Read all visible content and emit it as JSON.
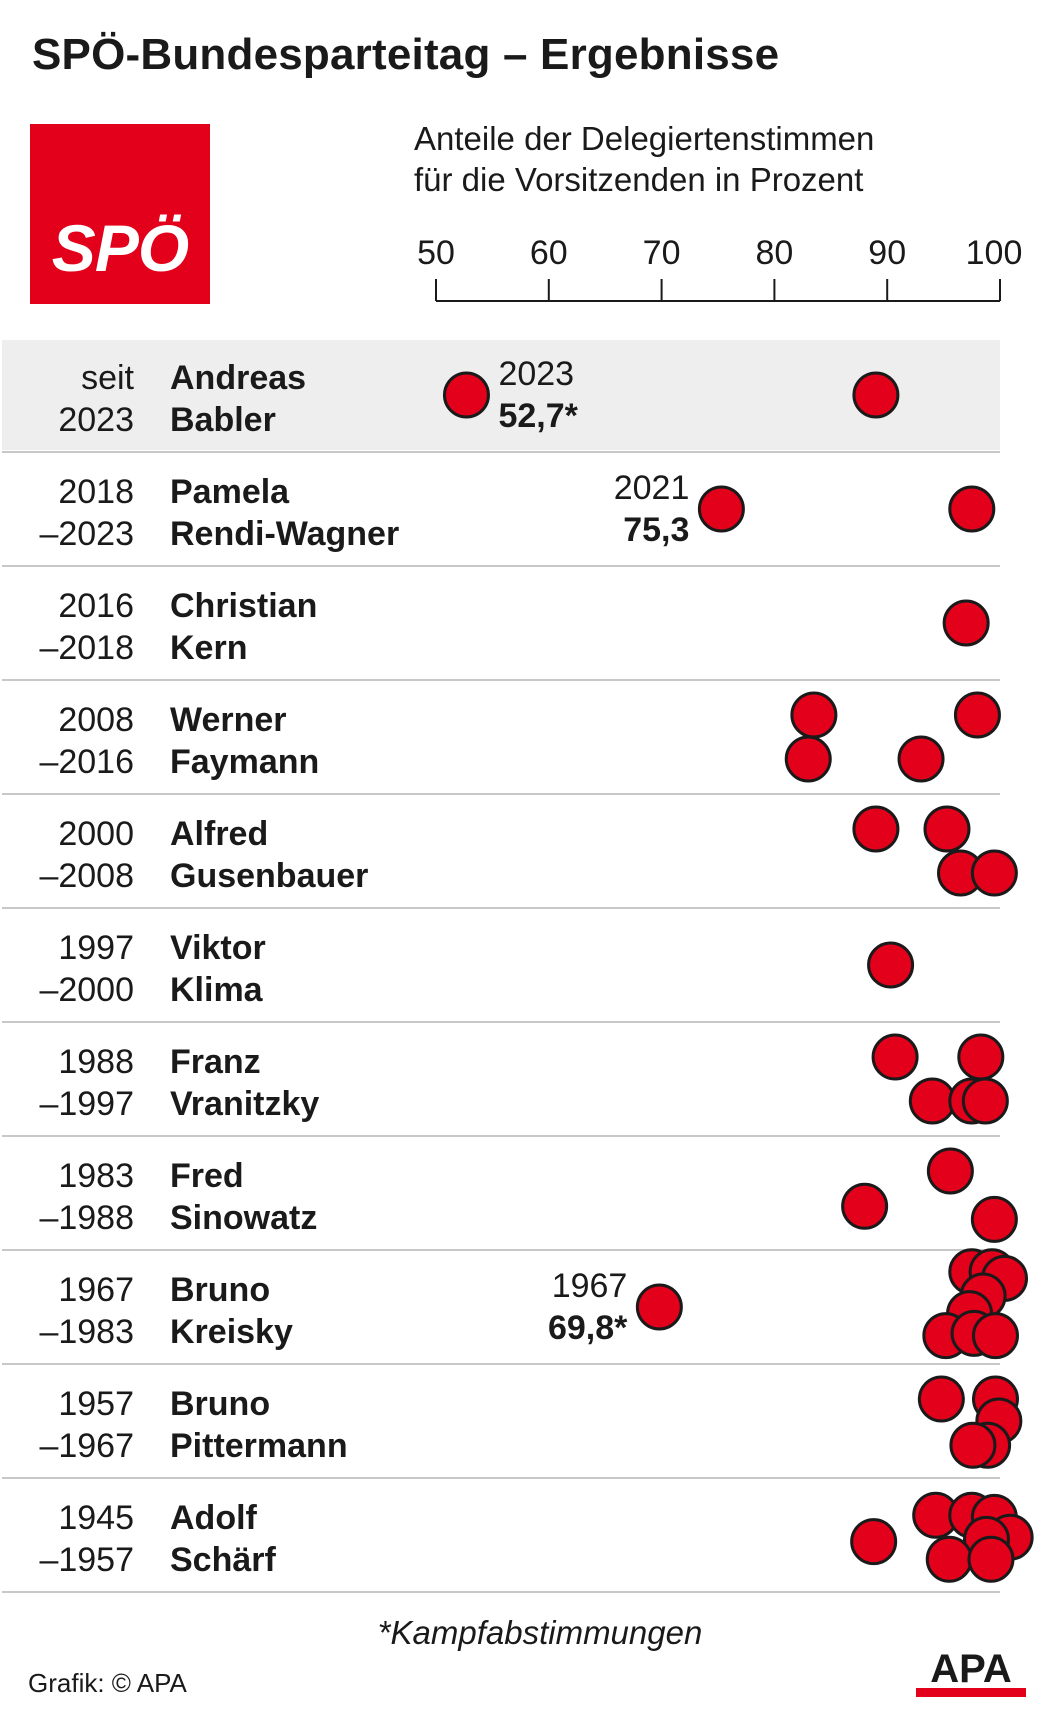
{
  "title": "SPÖ-Bundesparteitag – Ergebnisse",
  "logo_text": "SPÖ",
  "subtitle_line1": "Anteile der Delegiertenstimmen",
  "subtitle_line2": "für die Vorsitzenden in Prozent",
  "footnote": "*Kampfabstimmungen",
  "credit": "Grafik: © APA",
  "apa_logo_text": "APA",
  "colors": {
    "dot": "#e2001a",
    "dot_stroke": "#1a1a1a",
    "highlight_row": "#eeeeee",
    "divider": "#c8c8c8",
    "logo_bg": "#e2001a"
  },
  "chart_data": {
    "type": "scatter",
    "xlim": [
      50,
      100
    ],
    "ticks": [
      "50",
      "60",
      "70",
      "80",
      "90",
      "100"
    ],
    "rows": [
      {
        "years_top": "seit",
        "years_bottom": "2023",
        "first": "Andreas",
        "last": "Babler",
        "highlight": true,
        "points": [
          [
            52.7,
            0
          ],
          [
            89,
            0
          ]
        ],
        "annotation": {
          "year": "2023",
          "value": "52,7*"
        }
      },
      {
        "years_top": "2018",
        "years_bottom": "–2023",
        "first": "Pamela",
        "last": "Rendi-Wagner",
        "points": [
          [
            75.3,
            0
          ],
          [
            97.5,
            0
          ]
        ],
        "annotation": {
          "year": "2021",
          "value": "75,3"
        }
      },
      {
        "years_top": "2016",
        "years_bottom": "–2018",
        "first": "Christian",
        "last": "Kern",
        "points": [
          [
            97,
            0
          ]
        ]
      },
      {
        "years_top": "2008",
        "years_bottom": "–2016",
        "first": "Werner",
        "last": "Faymann",
        "points": [
          [
            83.5,
            -1
          ],
          [
            98,
            -1
          ],
          [
            83,
            1
          ],
          [
            93,
            1
          ]
        ]
      },
      {
        "years_top": "2000",
        "years_bottom": "–2008",
        "first": "Alfred",
        "last": "Gusenbauer",
        "points": [
          [
            89,
            -1
          ],
          [
            95.3,
            -1
          ],
          [
            96.5,
            1
          ],
          [
            99.5,
            1
          ]
        ]
      },
      {
        "years_top": "1997",
        "years_bottom": "–2000",
        "first": "Viktor",
        "last": "Klima",
        "points": [
          [
            90.3,
            0
          ]
        ]
      },
      {
        "years_top": "1988",
        "years_bottom": "–1997",
        "first": "Franz",
        "last": "Vranitzky",
        "points": [
          [
            90.7,
            -1
          ],
          [
            98.3,
            -1
          ],
          [
            94,
            1
          ],
          [
            97.5,
            1
          ],
          [
            98.7,
            1
          ]
        ]
      },
      {
        "years_top": "1983",
        "years_bottom": "–1988",
        "first": "Fred",
        "last": "Sinowatz",
        "points": [
          [
            95.6,
            -1
          ],
          [
            88,
            0.6
          ],
          [
            99.5,
            1.2
          ]
        ]
      },
      {
        "years_top": "1967",
        "years_bottom": "–1983",
        "first": "Bruno",
        "last": "Kreisky",
        "points": [
          [
            69.8,
            0
          ],
          [
            97.5,
            -1.6
          ],
          [
            99.3,
            -1.6
          ],
          [
            100.4,
            -1.3
          ],
          [
            98.5,
            -0.5
          ],
          [
            97.3,
            0.3
          ],
          [
            95.2,
            1.3
          ],
          [
            97.7,
            1.2
          ],
          [
            99.6,
            1.3
          ]
        ],
        "annotation": {
          "year": "1967",
          "value": "69,8*"
        }
      },
      {
        "years_top": "1957",
        "years_bottom": "–1967",
        "first": "Bruno",
        "last": "Pittermann",
        "points": [
          [
            94.8,
            -1
          ],
          [
            99.6,
            -1
          ],
          [
            99.9,
            0
          ],
          [
            98.9,
            1.1
          ],
          [
            97.6,
            1.1
          ]
        ]
      },
      {
        "years_top": "1945",
        "years_bottom": "–1957",
        "first": "Adolf",
        "last": "Schärf",
        "points": [
          [
            94.3,
            -0.9
          ],
          [
            97.5,
            -0.9
          ],
          [
            99.5,
            -0.8
          ],
          [
            100.9,
            0.1
          ],
          [
            98.8,
            0.2
          ],
          [
            88.8,
            0.3
          ],
          [
            95.5,
            1.1
          ],
          [
            99.2,
            1.1
          ]
        ]
      }
    ]
  }
}
